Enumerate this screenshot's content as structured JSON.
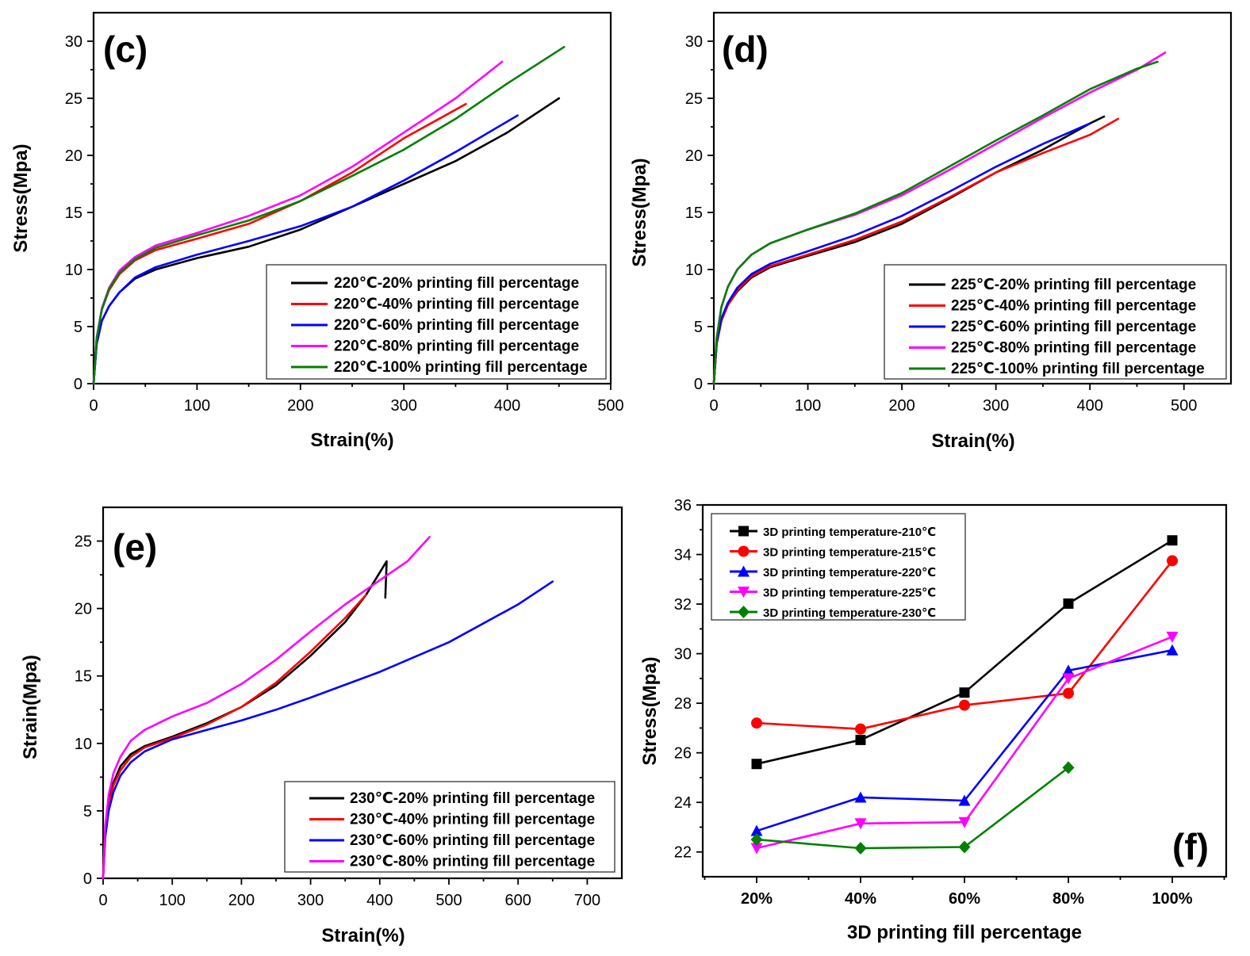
{
  "chart_data": [
    {
      "id": "c",
      "type": "line",
      "panel_label": "(c)",
      "xlabel": "Strain(%)",
      "ylabel": "Stress(Mpa)",
      "xlim": [
        0,
        500
      ],
      "ylim": [
        0,
        32.5
      ],
      "xticks": [
        "0",
        "100",
        "200",
        "300",
        "400",
        "500"
      ],
      "yticks": [
        "0",
        "5",
        "10",
        "15",
        "20",
        "25",
        "30"
      ],
      "legend_position": "bottom-right",
      "series": [
        {
          "name": "220℃-20% printing fill percentage",
          "color": "#000000",
          "points": [
            [
              0,
              0
            ],
            [
              3,
              3.5
            ],
            [
              8,
              5.5
            ],
            [
              15,
              6.8
            ],
            [
              25,
              8.0
            ],
            [
              40,
              9.2
            ],
            [
              60,
              10.0
            ],
            [
              100,
              11.0
            ],
            [
              150,
              12.0
            ],
            [
              200,
              13.5
            ],
            [
              250,
              15.5
            ],
            [
              300,
              17.5
            ],
            [
              350,
              19.5
            ],
            [
              400,
              22.0
            ],
            [
              450,
              25.0
            ]
          ]
        },
        {
          "name": "220℃-40% printing fill percentage",
          "color": "#ff0000",
          "points": [
            [
              0,
              0
            ],
            [
              3,
              4
            ],
            [
              8,
              6.5
            ],
            [
              15,
              8.2
            ],
            [
              25,
              9.6
            ],
            [
              40,
              10.8
            ],
            [
              60,
              11.7
            ],
            [
              100,
              12.7
            ],
            [
              150,
              14.0
            ],
            [
              200,
              16.0
            ],
            [
              250,
              18.5
            ],
            [
              300,
              21.5
            ],
            [
              330,
              23.0
            ],
            [
              360,
              24.5
            ]
          ]
        },
        {
          "name": "220℃-60% printing fill percentage",
          "color": "#0000ff",
          "points": [
            [
              0,
              0
            ],
            [
              3,
              3.5
            ],
            [
              8,
              5.5
            ],
            [
              15,
              6.8
            ],
            [
              25,
              8.0
            ],
            [
              40,
              9.3
            ],
            [
              60,
              10.2
            ],
            [
              100,
              11.3
            ],
            [
              150,
              12.5
            ],
            [
              200,
              13.8
            ],
            [
              250,
              15.5
            ],
            [
              300,
              17.8
            ],
            [
              350,
              20.3
            ],
            [
              410,
              23.5
            ]
          ]
        },
        {
          "name": "220℃-80% printing fill percentage",
          "color": "#ff00ff",
          "points": [
            [
              0,
              0
            ],
            [
              3,
              4
            ],
            [
              8,
              6.6
            ],
            [
              15,
              8.4
            ],
            [
              25,
              9.9
            ],
            [
              40,
              11.1
            ],
            [
              60,
              12.1
            ],
            [
              100,
              13.2
            ],
            [
              150,
              14.7
            ],
            [
              200,
              16.5
            ],
            [
              250,
              19.0
            ],
            [
              300,
              22.0
            ],
            [
              350,
              25.0
            ],
            [
              395,
              28.2
            ]
          ]
        },
        {
          "name": "220℃-100% printing fill percentage",
          "color": "#008000",
          "points": [
            [
              0,
              0
            ],
            [
              3,
              4
            ],
            [
              8,
              6.5
            ],
            [
              15,
              8.3
            ],
            [
              25,
              9.7
            ],
            [
              40,
              10.9
            ],
            [
              60,
              11.9
            ],
            [
              100,
              13.0
            ],
            [
              150,
              14.3
            ],
            [
              200,
              16.0
            ],
            [
              250,
              18.2
            ],
            [
              300,
              20.5
            ],
            [
              350,
              23.2
            ],
            [
              400,
              26.3
            ],
            [
              455,
              29.5
            ]
          ]
        }
      ]
    },
    {
      "id": "d",
      "type": "line",
      "panel_label": "(d)",
      "xlabel": "Strain(%)",
      "ylabel": "Stress(Mpa)",
      "xlim": [
        0,
        550
      ],
      "ylim": [
        0,
        32.5
      ],
      "xticks": [
        "0",
        "100",
        "200",
        "300",
        "400",
        "500"
      ],
      "yticks": [
        "0",
        "5",
        "10",
        "15",
        "20",
        "25",
        "30"
      ],
      "legend_position": "bottom-right",
      "series": [
        {
          "name": "225℃-20% printing fill percentage",
          "color": "#000000",
          "points": [
            [
              0,
              0
            ],
            [
              3,
              3.5
            ],
            [
              8,
              5.5
            ],
            [
              15,
              6.9
            ],
            [
              25,
              8.1
            ],
            [
              40,
              9.3
            ],
            [
              60,
              10.2
            ],
            [
              100,
              11.2
            ],
            [
              150,
              12.4
            ],
            [
              200,
              14.0
            ],
            [
              250,
              16.2
            ],
            [
              300,
              18.5
            ],
            [
              350,
              20.5
            ],
            [
              400,
              22.8
            ],
            [
              415,
              23.4
            ]
          ]
        },
        {
          "name": "225℃-40% printing fill percentage",
          "color": "#ff0000",
          "points": [
            [
              0,
              0
            ],
            [
              3,
              3.5
            ],
            [
              8,
              5.5
            ],
            [
              15,
              6.9
            ],
            [
              25,
              8.2
            ],
            [
              40,
              9.4
            ],
            [
              60,
              10.3
            ],
            [
              100,
              11.3
            ],
            [
              150,
              12.6
            ],
            [
              200,
              14.2
            ],
            [
              250,
              16.3
            ],
            [
              300,
              18.5
            ],
            [
              350,
              20.2
            ],
            [
              400,
              21.8
            ],
            [
              430,
              23.2
            ]
          ]
        },
        {
          "name": "225℃-60% printing fill percentage",
          "color": "#0000ff",
          "points": [
            [
              0,
              0
            ],
            [
              3,
              3.6
            ],
            [
              8,
              5.7
            ],
            [
              15,
              7.1
            ],
            [
              25,
              8.4
            ],
            [
              40,
              9.6
            ],
            [
              60,
              10.5
            ],
            [
              100,
              11.6
            ],
            [
              150,
              13.0
            ],
            [
              200,
              14.7
            ],
            [
              250,
              16.8
            ],
            [
              300,
              19.0
            ],
            [
              350,
              21.0
            ],
            [
              400,
              22.8
            ]
          ]
        },
        {
          "name": "225℃-80% printing fill percentage",
          "color": "#ff00ff",
          "points": [
            [
              0,
              0
            ],
            [
              3,
              4
            ],
            [
              8,
              6.7
            ],
            [
              15,
              8.5
            ],
            [
              25,
              10.0
            ],
            [
              40,
              11.3
            ],
            [
              60,
              12.3
            ],
            [
              100,
              13.5
            ],
            [
              150,
              14.8
            ],
            [
              200,
              16.5
            ],
            [
              250,
              18.7
            ],
            [
              300,
              21.0
            ],
            [
              350,
              23.3
            ],
            [
              400,
              25.5
            ],
            [
              450,
              27.5
            ],
            [
              480,
              29.0
            ]
          ]
        },
        {
          "name": "225℃-100% printing fill percentage",
          "color": "#008000",
          "points": [
            [
              0,
              0
            ],
            [
              3,
              4
            ],
            [
              8,
              6.7
            ],
            [
              15,
              8.5
            ],
            [
              25,
              10.0
            ],
            [
              40,
              11.3
            ],
            [
              60,
              12.3
            ],
            [
              100,
              13.5
            ],
            [
              150,
              14.9
            ],
            [
              200,
              16.7
            ],
            [
              250,
              19.0
            ],
            [
              300,
              21.3
            ],
            [
              350,
              23.5
            ],
            [
              400,
              25.8
            ],
            [
              450,
              27.6
            ],
            [
              472,
              28.2
            ]
          ]
        }
      ]
    },
    {
      "id": "e",
      "type": "line",
      "panel_label": "(e)",
      "xlabel": "Strain(%)",
      "ylabel": "Strain(Mpa)",
      "xlim": [
        0,
        750
      ],
      "ylim": [
        0,
        27.5
      ],
      "xticks": [
        "0",
        "100",
        "200",
        "300",
        "400",
        "500",
        "600",
        "700"
      ],
      "yticks": [
        "0",
        "5",
        "10",
        "15",
        "20",
        "25"
      ],
      "legend_position": "bottom-right",
      "series": [
        {
          "name": "230℃-20% printing fill percentage",
          "color": "#000000",
          "points": [
            [
              0,
              0
            ],
            [
              3,
              3.5
            ],
            [
              8,
              5.6
            ],
            [
              15,
              7.1
            ],
            [
              25,
              8.3
            ],
            [
              40,
              9.2
            ],
            [
              60,
              9.8
            ],
            [
              100,
              10.5
            ],
            [
              150,
              11.5
            ],
            [
              200,
              12.7
            ],
            [
              250,
              14.3
            ],
            [
              300,
              16.5
            ],
            [
              350,
              19.0
            ],
            [
              380,
              21.0
            ],
            [
              410,
              23.5
            ],
            [
              408,
              20.8
            ]
          ]
        },
        {
          "name": "230℃-40% printing fill percentage",
          "color": "#ff0000",
          "points": [
            [
              0,
              0
            ],
            [
              3,
              3.4
            ],
            [
              8,
              5.4
            ],
            [
              15,
              6.9
            ],
            [
              25,
              8.0
            ],
            [
              40,
              9.0
            ],
            [
              60,
              9.7
            ],
            [
              100,
              10.4
            ],
            [
              150,
              11.4
            ],
            [
              200,
              12.7
            ],
            [
              250,
              14.5
            ],
            [
              300,
              16.8
            ],
            [
              350,
              19.3
            ],
            [
              380,
              21.0
            ]
          ]
        },
        {
          "name": "230℃-60% printing fill percentage",
          "color": "#0000ff",
          "points": [
            [
              0,
              0
            ],
            [
              3,
              3.0
            ],
            [
              8,
              5.0
            ],
            [
              15,
              6.4
            ],
            [
              25,
              7.6
            ],
            [
              40,
              8.6
            ],
            [
              60,
              9.4
            ],
            [
              100,
              10.3
            ],
            [
              150,
              11.0
            ],
            [
              200,
              11.7
            ],
            [
              250,
              12.5
            ],
            [
              300,
              13.4
            ],
            [
              400,
              15.3
            ],
            [
              500,
              17.5
            ],
            [
              600,
              20.3
            ],
            [
              650,
              22.0
            ]
          ]
        },
        {
          "name": "230℃-80% printing fill percentage",
          "color": "#ff00ff",
          "points": [
            [
              0,
              0
            ],
            [
              3,
              3.8
            ],
            [
              8,
              6.2
            ],
            [
              15,
              7.8
            ],
            [
              25,
              9.0
            ],
            [
              40,
              10.2
            ],
            [
              60,
              11.0
            ],
            [
              100,
              12.0
            ],
            [
              150,
              13.0
            ],
            [
              200,
              14.4
            ],
            [
              250,
              16.2
            ],
            [
              300,
              18.3
            ],
            [
              350,
              20.3
            ],
            [
              400,
              22.1
            ],
            [
              440,
              23.5
            ],
            [
              472,
              25.3
            ]
          ]
        }
      ]
    },
    {
      "id": "f",
      "type": "line",
      "panel_label": "(f)",
      "xlabel": "3D printing fill  percentage",
      "ylabel": "Stress(Mpa)",
      "categories": [
        "20%",
        "40%",
        "60%",
        "80%",
        "100%"
      ],
      "ylim": [
        21,
        36
      ],
      "yticks": [
        "22",
        "24",
        "26",
        "28",
        "30",
        "32",
        "34",
        "36"
      ],
      "legend_position": "top-left",
      "series": [
        {
          "name": "3D printing temperature-210℃",
          "color": "#000000",
          "marker": "square",
          "values": [
            25.55,
            26.52,
            28.43,
            32.02,
            34.57
          ]
        },
        {
          "name": "3D printing temperature-215℃",
          "color": "#ff0000",
          "marker": "circle",
          "values": [
            27.2,
            26.96,
            27.92,
            28.4,
            33.75
          ]
        },
        {
          "name": "3D printing temperature-220℃",
          "color": "#0000ff",
          "marker": "triangle-up",
          "values": [
            22.85,
            24.2,
            24.07,
            29.32,
            30.14
          ]
        },
        {
          "name": "3D printing temperature-225℃",
          "color": "#ff00ff",
          "marker": "triangle-down",
          "values": [
            22.15,
            23.15,
            23.2,
            29.0,
            30.68
          ]
        },
        {
          "name": "3D printing temperature-230℃",
          "color": "#008000",
          "marker": "diamond",
          "values": [
            22.5,
            22.15,
            22.2,
            25.4,
            null
          ]
        }
      ]
    }
  ]
}
